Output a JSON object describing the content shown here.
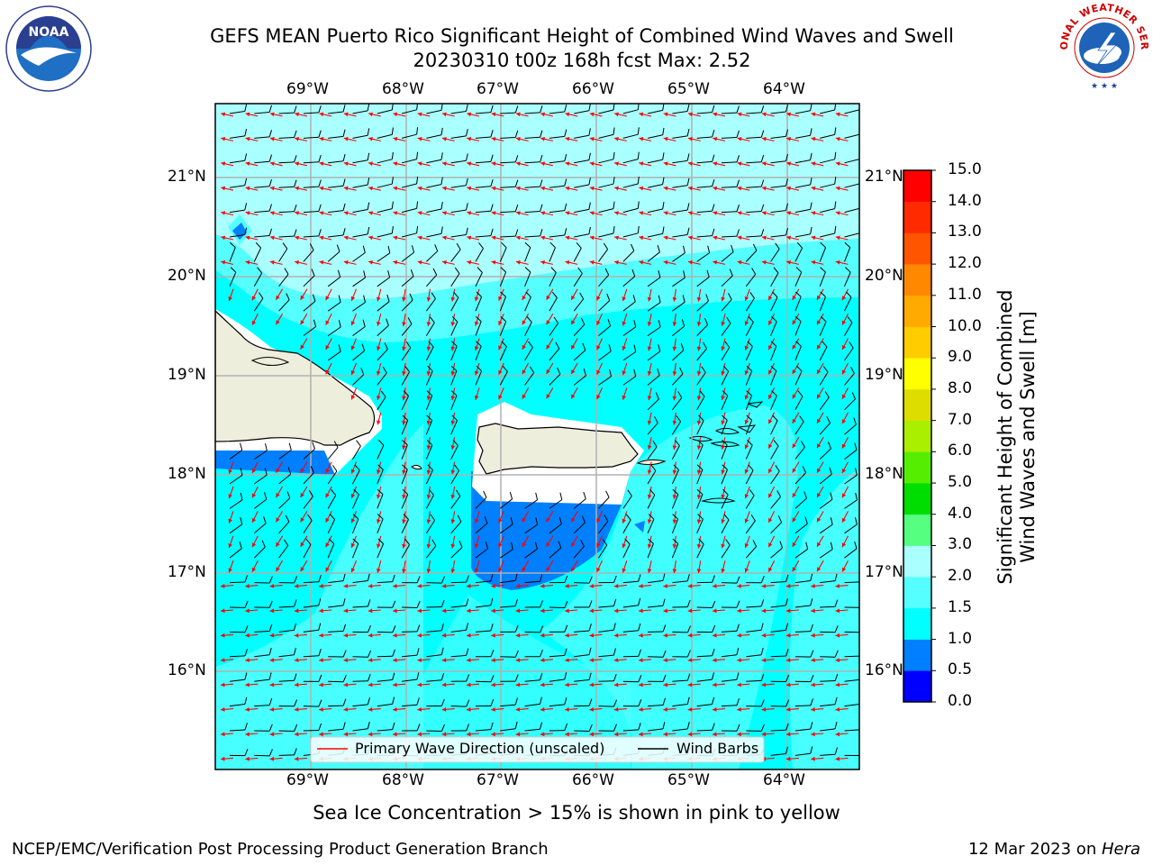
{
  "title_line1": "GEFS MEAN Puerto Rico Significant Height of Combined Wind Waves and Swell",
  "title_line2": "20230310 t00z 168h fcst   Max: 2.52",
  "logos": {
    "left": "NOAA",
    "right": "NATIONAL WEATHER SERVICE"
  },
  "lon_labels": [
    "69°W",
    "68°W",
    "67°W",
    "66°W",
    "65°W",
    "64°W"
  ],
  "lat_labels": [
    "21°N",
    "20°N",
    "19°N",
    "18°N",
    "17°N",
    "16°N"
  ],
  "legend": {
    "wave": "Primary Wave Direction (unscaled)",
    "wind": "Wind Barbs"
  },
  "colorbar": {
    "label_line1": "Significant Height of Combined",
    "label_line2": "Wind Waves and Swell [m]",
    "ticks": [
      "15.0",
      "14.0",
      "13.0",
      "12.0",
      "11.0",
      "10.0",
      "9.0",
      "8.0",
      "7.0",
      "6.0",
      "5.0",
      "4.0",
      "3.0",
      "2.0",
      "1.5",
      "1.0",
      "0.5",
      "0.0"
    ],
    "colors": [
      "#0000ff",
      "#007fff",
      "#00ffff",
      "#55ffff",
      "#aaffff",
      "#55ff7f",
      "#00dd00",
      "#55ee00",
      "#aaee00",
      "#dddd00",
      "#ffff00",
      "#ffcc00",
      "#ffaa00",
      "#ff8800",
      "#ff5500",
      "#ff2a00",
      "#ff0000"
    ]
  },
  "sea_ice_note": "Sea Ice Concentration > 15% is shown in pink to yellow",
  "footer_left": "NCEP/EMC/Verification Post Processing Product Generation Branch",
  "footer_right_prefix": "12 Mar 2023 on ",
  "footer_right_machine": "Hera"
}
